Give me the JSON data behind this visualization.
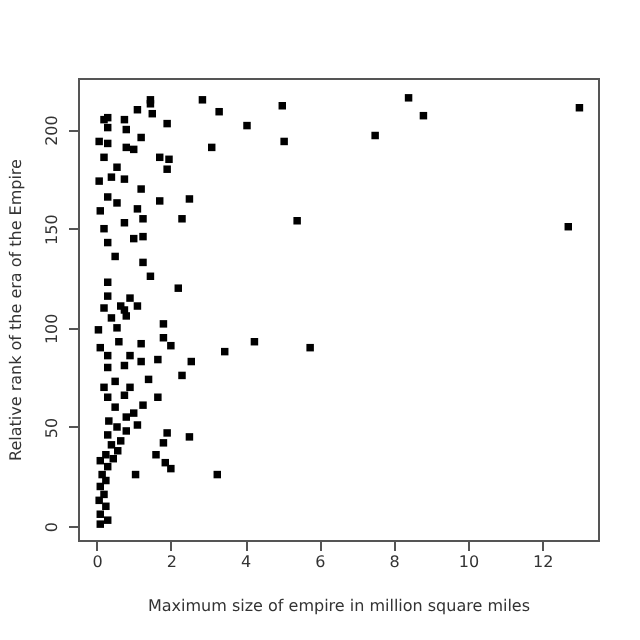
{
  "chart_data": {
    "type": "scatter",
    "xlabel": "Maximum size of empire in million square miles",
    "ylabel": "Relative rank of the era of the Empire",
    "marker": "square",
    "grid": false,
    "xlim": [
      -0.5,
      13.5
    ],
    "ylim": [
      -7,
      226
    ],
    "xticks": [
      0,
      2,
      4,
      6,
      8,
      10,
      12
    ],
    "yticks": [
      0,
      50,
      100,
      150,
      200
    ],
    "series": [
      {
        "color": "#000000",
        "x": [
          8.4,
          8.8,
          7.5,
          13.0,
          12.7,
          5.75,
          2.85,
          3.3,
          5.0,
          4.05,
          5.05,
          3.1,
          1.9,
          2.5,
          1.7,
          5.4,
          2.3,
          2.2,
          1.95,
          1.9,
          1.45,
          1.1,
          3.45,
          4.25,
          2.55,
          2.3,
          2.5,
          3.25,
          1.9,
          1.8,
          1.85,
          2.0,
          2.0,
          1.8,
          1.8,
          1.65,
          1.05,
          1.6,
          0.1,
          0.3,
          0.1,
          0.25,
          0.07,
          0.2,
          0.1,
          0.25,
          0.15,
          0.3,
          0.1,
          0.45,
          0.25,
          0.57,
          0.4,
          0.65,
          0.3,
          0.8,
          0.55,
          1.1,
          0.33,
          0.8,
          1.0,
          0.5,
          1.25,
          0.3,
          0.75,
          1.65,
          0.2,
          0.9,
          0.5,
          1.4,
          0.3,
          0.75,
          1.2,
          0.3,
          0.9,
          0.1,
          0.6,
          1.2,
          0.05,
          0.55,
          0.4,
          0.8,
          0.2,
          0.75,
          1.1,
          0.3,
          0.65,
          0.9,
          1.45,
          0.3,
          1.25,
          0.5,
          0.3,
          1.0,
          1.25,
          0.2,
          0.75,
          1.25,
          1.1,
          0.1,
          0.55,
          1.2,
          0.3,
          0.07,
          0.4,
          0.75,
          0.55,
          0.2,
          1.7,
          1.0,
          0.3,
          0.8,
          0.07,
          1.2,
          0.3,
          0.8,
          0.2,
          0.75,
          0.3,
          1.5,
          1.45
        ],
        "values": [
          216,
          207,
          197,
          211,
          151,
          90,
          215,
          209,
          212,
          202,
          194,
          191,
          203,
          165,
          164,
          154,
          155,
          120,
          185,
          180,
          215,
          210,
          88,
          93,
          83,
          76,
          45,
          26,
          47,
          42,
          32,
          29,
          91,
          95,
          102,
          84,
          26,
          36,
          1,
          3,
          6,
          10,
          13,
          16,
          20,
          23,
          26,
          30,
          33,
          34,
          36,
          38,
          41,
          43,
          46,
          48,
          50,
          51,
          53,
          55,
          57,
          60,
          61,
          65,
          66,
          65,
          70,
          70,
          73,
          74,
          80,
          81,
          83,
          86,
          86,
          90,
          93,
          92,
          99,
          100,
          105,
          106,
          110,
          109,
          111,
          116,
          111,
          115,
          126,
          123,
          133,
          136,
          143,
          145,
          146,
          150,
          153,
          155,
          160,
          159,
          163,
          170,
          166,
          174,
          176,
          175,
          181,
          186,
          186,
          190,
          193,
          191,
          194,
          196,
          201,
          200,
          205,
          205,
          206,
          208,
          213
        ]
      }
    ]
  }
}
